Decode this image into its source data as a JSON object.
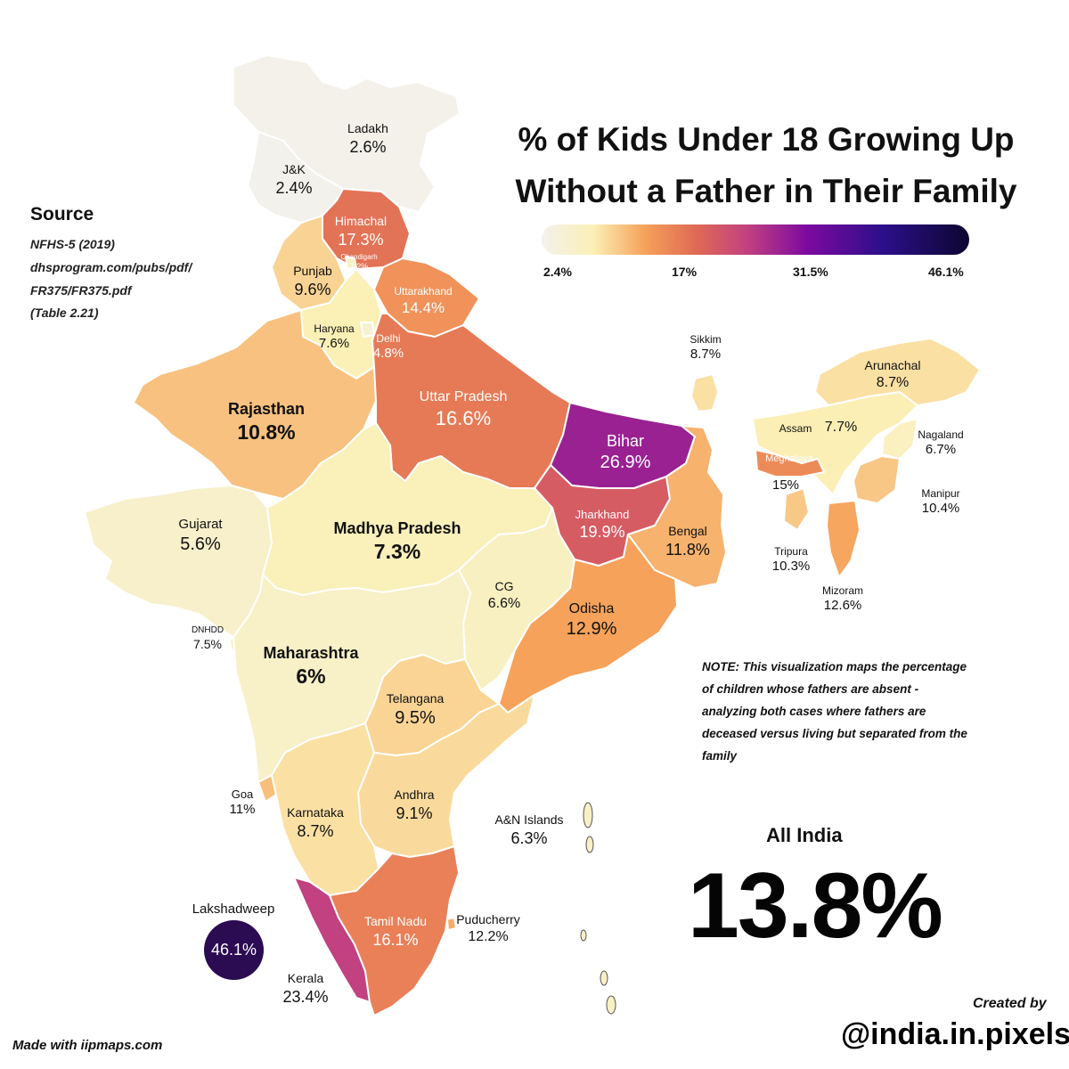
{
  "title_line1": "% of Kids Under 18 Growing Up",
  "title_line2": "Without a Father in Their Family",
  "legend": {
    "ticks": [
      "2.4%",
      "17%",
      "31.5%",
      "46.1%"
    ],
    "min": 2.4,
    "max": 46.1
  },
  "source": {
    "heading": "Source",
    "lines": [
      "NFHS-5 (2019)",
      "dhsprogram.com/pubs/pdf/",
      "FR375/FR375.pdf",
      "(Table 2.21)"
    ]
  },
  "note": "NOTE: This visualization maps the percentage of children whose fathers are absent - analyzing both cases where fathers are deceased versus living but separated from the family",
  "all_india": {
    "label": "All India",
    "value": "13.8%"
  },
  "credits": {
    "created_by": "Created by",
    "handle": "@india.in.pixels",
    "made_with": "Made with iipmaps.com"
  },
  "colors": {
    "low": "#f3f1ec",
    "mid": "#f6a25a",
    "high": "#0d0630"
  },
  "regions": {
    "ladakh": {
      "name": "Ladakh",
      "value": "2.6%",
      "num": 2.6
    },
    "jk": {
      "name": "J&K",
      "value": "2.4%",
      "num": 2.4
    },
    "himachal": {
      "name": "Himachal",
      "value": "17.3%",
      "num": 17.3
    },
    "chandigarh": {
      "name": "Chandigarh",
      "value": "7.2%",
      "num": 7.2
    },
    "punjab": {
      "name": "Punjab",
      "value": "9.6%",
      "num": 9.6
    },
    "uttarakhand": {
      "name": "Uttarakhand",
      "value": "14.4%",
      "num": 14.4
    },
    "haryana": {
      "name": "Haryana",
      "value": "7.6%",
      "num": 7.6
    },
    "delhi": {
      "name": "Delhi",
      "value": "4.8%",
      "num": 4.8
    },
    "rajasthan": {
      "name": "Rajasthan",
      "value": "10.8%",
      "num": 10.8
    },
    "uttar_pradesh": {
      "name": "Uttar Pradesh",
      "value": "16.6%",
      "num": 16.6
    },
    "bihar": {
      "name": "Bihar",
      "value": "26.9%",
      "num": 26.9
    },
    "sikkim": {
      "name": "Sikkim",
      "value": "8.7%",
      "num": 8.7
    },
    "arunachal": {
      "name": "Arunachal",
      "value": "8.7%",
      "num": 8.7
    },
    "assam": {
      "name": "Assam",
      "value": "7.7%",
      "num": 7.7
    },
    "nagaland": {
      "name": "Nagaland",
      "value": "6.7%",
      "num": 6.7
    },
    "meghalaya": {
      "name": "Meghalaya",
      "value": "15%",
      "num": 15
    },
    "manipur": {
      "name": "Manipur",
      "value": "10.4%",
      "num": 10.4
    },
    "tripura": {
      "name": "Tripura",
      "value": "10.3%",
      "num": 10.3
    },
    "mizoram": {
      "name": "Mizoram",
      "value": "12.6%",
      "num": 12.6
    },
    "gujarat": {
      "name": "Gujarat",
      "value": "5.6%",
      "num": 5.6
    },
    "madhya_pradesh": {
      "name": "Madhya Pradesh",
      "value": "7.3%",
      "num": 7.3
    },
    "jharkhand": {
      "name": "Jharkhand",
      "value": "19.9%",
      "num": 19.9
    },
    "bengal": {
      "name": "Bengal",
      "value": "11.8%",
      "num": 11.8
    },
    "cg": {
      "name": "CG",
      "value": "6.6%",
      "num": 6.6
    },
    "odisha": {
      "name": "Odisha",
      "value": "12.9%",
      "num": 12.9
    },
    "dnhdd": {
      "name": "DNHDD",
      "value": "7.5%",
      "num": 7.5
    },
    "maharashtra": {
      "name": "Maharashtra",
      "value": "6%",
      "num": 6
    },
    "telangana": {
      "name": "Telangana",
      "value": "9.5%",
      "num": 9.5
    },
    "goa": {
      "name": "Goa",
      "value": "11%",
      "num": 11
    },
    "karnataka": {
      "name": "Karnataka",
      "value": "8.7%",
      "num": 8.7
    },
    "andhra": {
      "name": "Andhra",
      "value": "9.1%",
      "num": 9.1
    },
    "an_islands": {
      "name": "A&N Islands",
      "value": "6.3%",
      "num": 6.3
    },
    "lakshadweep": {
      "name": "Lakshadweep",
      "value": "46.1%",
      "num": 46.1
    },
    "tamil_nadu": {
      "name": "Tamil Nadu",
      "value": "16.1%",
      "num": 16.1
    },
    "puducherry": {
      "name": "Puducherry",
      "value": "12.2%",
      "num": 12.2
    },
    "kerala": {
      "name": "Kerala",
      "value": "23.4%",
      "num": 23.4
    }
  }
}
